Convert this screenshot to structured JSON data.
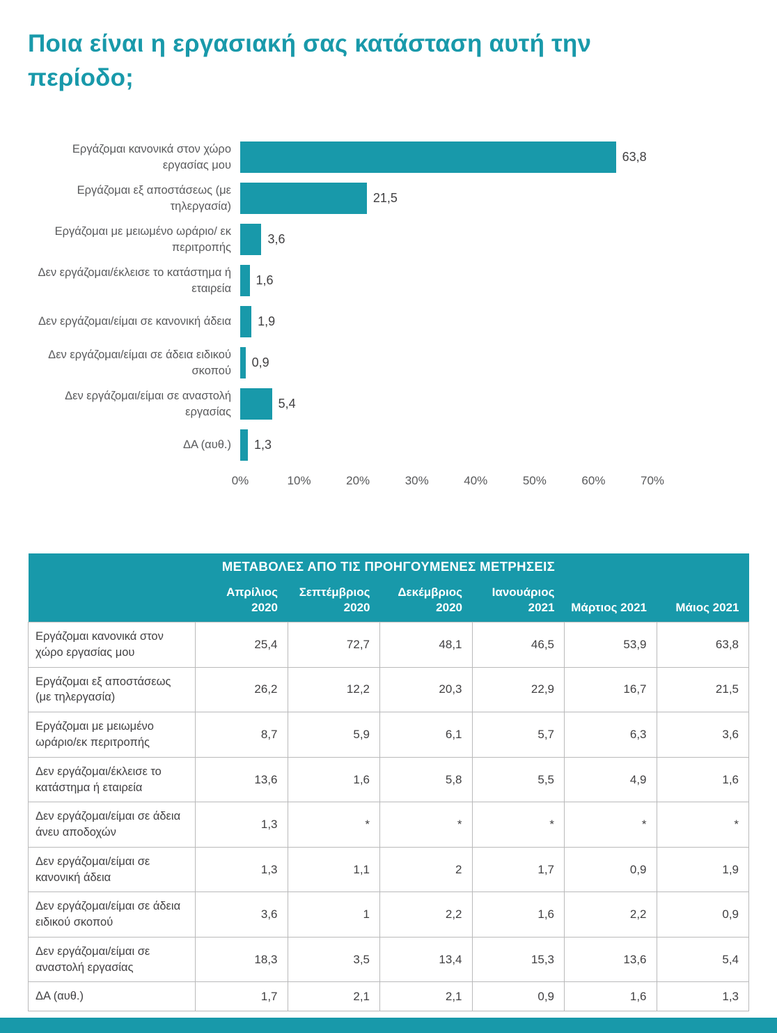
{
  "page": {
    "title": "Ποια είναι η εργασιακή σας κατάσταση αυτή την περίοδο;",
    "accent_color": "#1899aa"
  },
  "chart_data": {
    "type": "bar",
    "orientation": "horizontal",
    "title": "",
    "categories": [
      "Εργάζομαι κανονικά στον χώρο εργασίας μου",
      "Εργάζομαι εξ αποστάσεως (με τηλεργασία)",
      "Εργάζομαι με μειωμένο ωράριο/ εκ περιτροπής",
      "Δεν εργάζομαι/έκλεισε το κατάστημα ή εταιρεία",
      "Δεν εργάζομαι/είμαι σε κανονική άδεια",
      "Δεν εργάζομαι/είμαι σε άδεια ειδικού σκοπού",
      "Δεν εργάζομαι/είμαι σε αναστολή εργασίας",
      "ΔΑ (αυθ.)"
    ],
    "values": [
      63.8,
      21.5,
      3.6,
      1.6,
      1.9,
      0.9,
      5.4,
      1.3
    ],
    "value_labels": [
      "63,8",
      "21,5",
      "3,6",
      "1,6",
      "1,9",
      "0,9",
      "5,4",
      "1,3"
    ],
    "xlim": [
      0,
      70
    ],
    "x_ticks": [
      "0%",
      "10%",
      "20%",
      "30%",
      "40%",
      "50%",
      "60%",
      "70%"
    ],
    "bar_color": "#1899aa",
    "grid": false,
    "legend": false
  },
  "table": {
    "title": "ΜΕΤΑΒΟΛΕΣ ΑΠΟ ΤΙΣ ΠΡΟΗΓΟΥΜΕΝΕΣ ΜΕΤΡΗΣΕΙΣ",
    "columns": [
      "Απρίλιος 2020",
      "Σεπτέμβριος 2020",
      "Δεκέμβριος 2020",
      "Ιανουάριος 2021",
      "Μάρτιος 2021",
      "Μάιος 2021"
    ],
    "rows": [
      {
        "label": "Εργάζομαι κανονικά στον χώρο εργασίας μου",
        "values": [
          "25,4",
          "72,7",
          "48,1",
          "46,5",
          "53,9",
          "63,8"
        ]
      },
      {
        "label": "Εργάζομαι εξ αποστάσεως (με τηλεργασία)",
        "values": [
          "26,2",
          "12,2",
          "20,3",
          "22,9",
          "16,7",
          "21,5"
        ]
      },
      {
        "label": "Εργάζομαι με μειωμένο ωράριο/εκ περιτροπής",
        "values": [
          "8,7",
          "5,9",
          "6,1",
          "5,7",
          "6,3",
          "3,6"
        ]
      },
      {
        "label": "Δεν εργάζομαι/έκλεισε το κατάστημα ή εταιρεία",
        "values": [
          "13,6",
          "1,6",
          "5,8",
          "5,5",
          "4,9",
          "1,6"
        ]
      },
      {
        "label": "Δεν εργάζομαι/είμαι σε άδεια άνευ αποδοχών",
        "values": [
          "1,3",
          "*",
          "*",
          "*",
          "*",
          "*"
        ]
      },
      {
        "label": "Δεν εργάζομαι/είμαι σε κανονική άδεια",
        "values": [
          "1,3",
          "1,1",
          "2",
          "1,7",
          "0,9",
          "1,9"
        ]
      },
      {
        "label": "Δεν εργάζομαι/είμαι σε άδεια ειδικού σκοπού",
        "values": [
          "3,6",
          "1",
          "2,2",
          "1,6",
          "2,2",
          "0,9"
        ]
      },
      {
        "label": "Δεν εργάζομαι/είμαι σε αναστολή εργασίας",
        "values": [
          "18,3",
          "3,5",
          "13,4",
          "15,3",
          "13,6",
          "5,4"
        ]
      },
      {
        "label": "ΔΑ (αυθ.)",
        "values": [
          "1,7",
          "2,1",
          "2,1",
          "0,9",
          "1,6",
          "1,3"
        ]
      }
    ]
  }
}
